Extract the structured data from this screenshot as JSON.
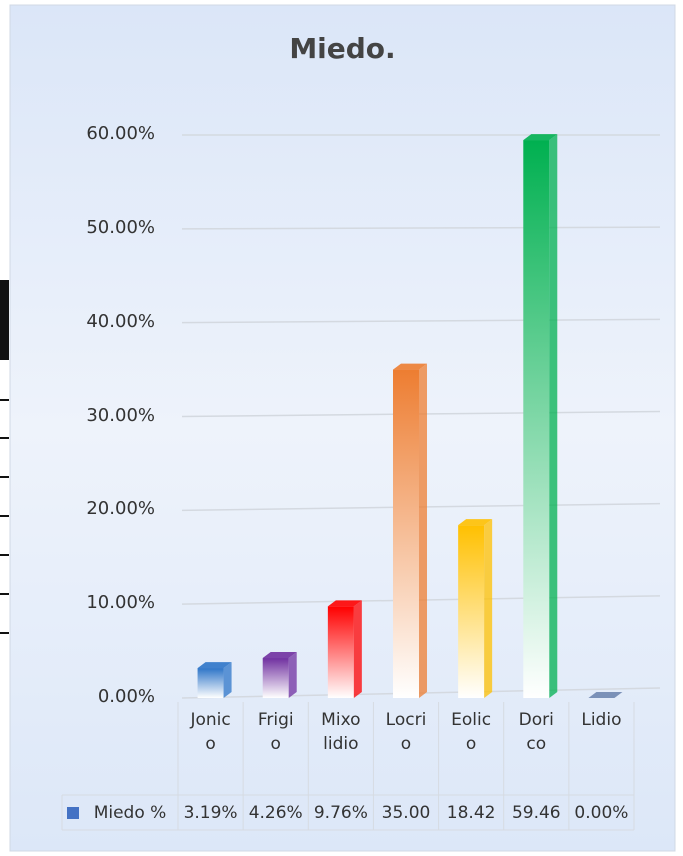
{
  "chart_data": {
    "type": "bar",
    "title": "Miedo.",
    "categories": [
      "Jonico",
      "Frigio",
      "Mixolidio",
      "Locrio",
      "Eolico",
      "Dorico",
      "Lidio"
    ],
    "series": [
      {
        "name": "Miedo %",
        "color": "#4472c4",
        "colors": [
          "#2e75c8",
          "#7030a0",
          "#ff0000",
          "#ed7d31",
          "#ffc000",
          "#00b050",
          "#6f87b0"
        ],
        "values": [
          3.19,
          4.26,
          9.76,
          35.0,
          18.42,
          59.46,
          0.0
        ],
        "value_labels": [
          "3.19%",
          "4.26%",
          "9.76%",
          "35.00",
          "18.42",
          "59.46",
          "0.00%"
        ]
      }
    ],
    "ylim": [
      0,
      60
    ],
    "yticks": [
      {
        "value": 0,
        "label": "0.00%"
      },
      {
        "value": 10,
        "label": "10.00%"
      },
      {
        "value": 20,
        "label": "20.00%"
      },
      {
        "value": 30,
        "label": "30.00%"
      },
      {
        "value": 40,
        "label": "40.00%"
      },
      {
        "value": 50,
        "label": "50.00%"
      },
      {
        "value": 60,
        "label": "60.00%"
      }
    ],
    "grid": true,
    "data_table": true
  }
}
